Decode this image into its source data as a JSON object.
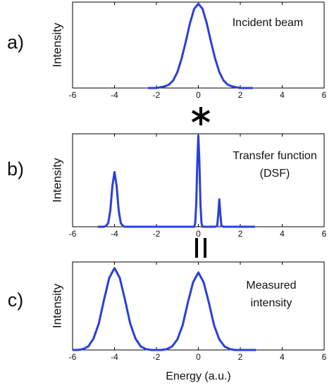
{
  "chart_data": [
    {
      "type": "line",
      "panel_label": "a)",
      "ylabel": "Intensity",
      "annotation": [
        "Incident beam"
      ],
      "x": [
        -2.4,
        -2.2,
        -2.0,
        -1.8,
        -1.6,
        -1.4,
        -1.2,
        -1.0,
        -0.8,
        -0.6,
        -0.4,
        -0.2,
        0,
        0.2,
        0.4,
        0.6,
        0.8,
        1.0,
        1.2,
        1.4,
        1.6,
        1.8,
        2.0,
        2.2,
        2.4,
        2.6
      ],
      "values": [
        0,
        0,
        0,
        0.01,
        0.02,
        0.04,
        0.09,
        0.19,
        0.35,
        0.55,
        0.77,
        0.94,
        1,
        0.94,
        0.77,
        0.55,
        0.35,
        0.19,
        0.09,
        0.04,
        0.02,
        0.01,
        0,
        0,
        0,
        0
      ],
      "color": "#2a3fd9",
      "xlim": [
        -6,
        6
      ],
      "xticks": [
        -6,
        -4,
        -2,
        0,
        2,
        4,
        6
      ],
      "ylim": [
        0,
        1.02
      ]
    },
    {
      "type": "line",
      "panel_label": "b)",
      "ylabel": "Intensity",
      "annotation": [
        "Transfer function",
        "(DSF)"
      ],
      "x": [
        -4.8,
        -4.5,
        -4.4,
        -4.3,
        -4.2,
        -4.1,
        -4,
        -3.9,
        -3.8,
        -3.7,
        -3.6,
        -3.5,
        -3,
        -0.3,
        -0.2,
        -0.15,
        -0.1,
        -0.05,
        0,
        0.05,
        0.1,
        0.15,
        0.2,
        0.3,
        0.8,
        0.9,
        0.95,
        1,
        1.05,
        1.1,
        1.2,
        2.7
      ],
      "values": [
        0,
        0,
        0.01,
        0.04,
        0.18,
        0.45,
        0.6,
        0.45,
        0.18,
        0.04,
        0.01,
        0,
        0,
        0,
        0,
        0.04,
        0.25,
        0.71,
        1,
        0.71,
        0.25,
        0.04,
        0,
        0,
        0,
        0.01,
        0.14,
        0.3,
        0.14,
        0.01,
        0,
        0
      ],
      "color": "#2a3fd9",
      "xlim": [
        -6,
        6
      ],
      "xticks": [
        -6,
        -4,
        -2,
        0,
        2,
        4,
        6
      ],
      "ylim": [
        0,
        1.02
      ]
    },
    {
      "type": "line",
      "panel_label": "c)",
      "ylabel": "Intensity",
      "annotation": [
        "Measured",
        "intensity"
      ],
      "xlabel": "Energy (a.u.)",
      "x": [
        -6,
        -5.75,
        -5.5,
        -5.25,
        -5,
        -4.75,
        -4.5,
        -4.25,
        -4,
        -3.75,
        -3.5,
        -3.25,
        -3,
        -2.75,
        -2.5,
        -2.25,
        -2,
        -1.75,
        -1.5,
        -1.25,
        -1,
        -0.75,
        -0.5,
        -0.25,
        0,
        0.25,
        0.5,
        0.75,
        1,
        1.25,
        1.5,
        1.75,
        2,
        2.25,
        2.5,
        2.75
      ],
      "values": [
        0,
        0,
        0.01,
        0.04,
        0.13,
        0.3,
        0.57,
        0.82,
        0.93,
        0.82,
        0.57,
        0.3,
        0.13,
        0.04,
        0.01,
        0,
        0,
        0,
        0.01,
        0.04,
        0.12,
        0.28,
        0.54,
        0.77,
        0.88,
        0.77,
        0.54,
        0.28,
        0.12,
        0.04,
        0.01,
        0,
        0,
        0,
        0,
        0
      ],
      "color": "#2a3fd9",
      "xlim": [
        -6,
        6
      ],
      "xticks": [
        -6,
        -4,
        -2,
        0,
        2,
        4,
        6
      ],
      "ylim": [
        0,
        1
      ]
    }
  ]
}
